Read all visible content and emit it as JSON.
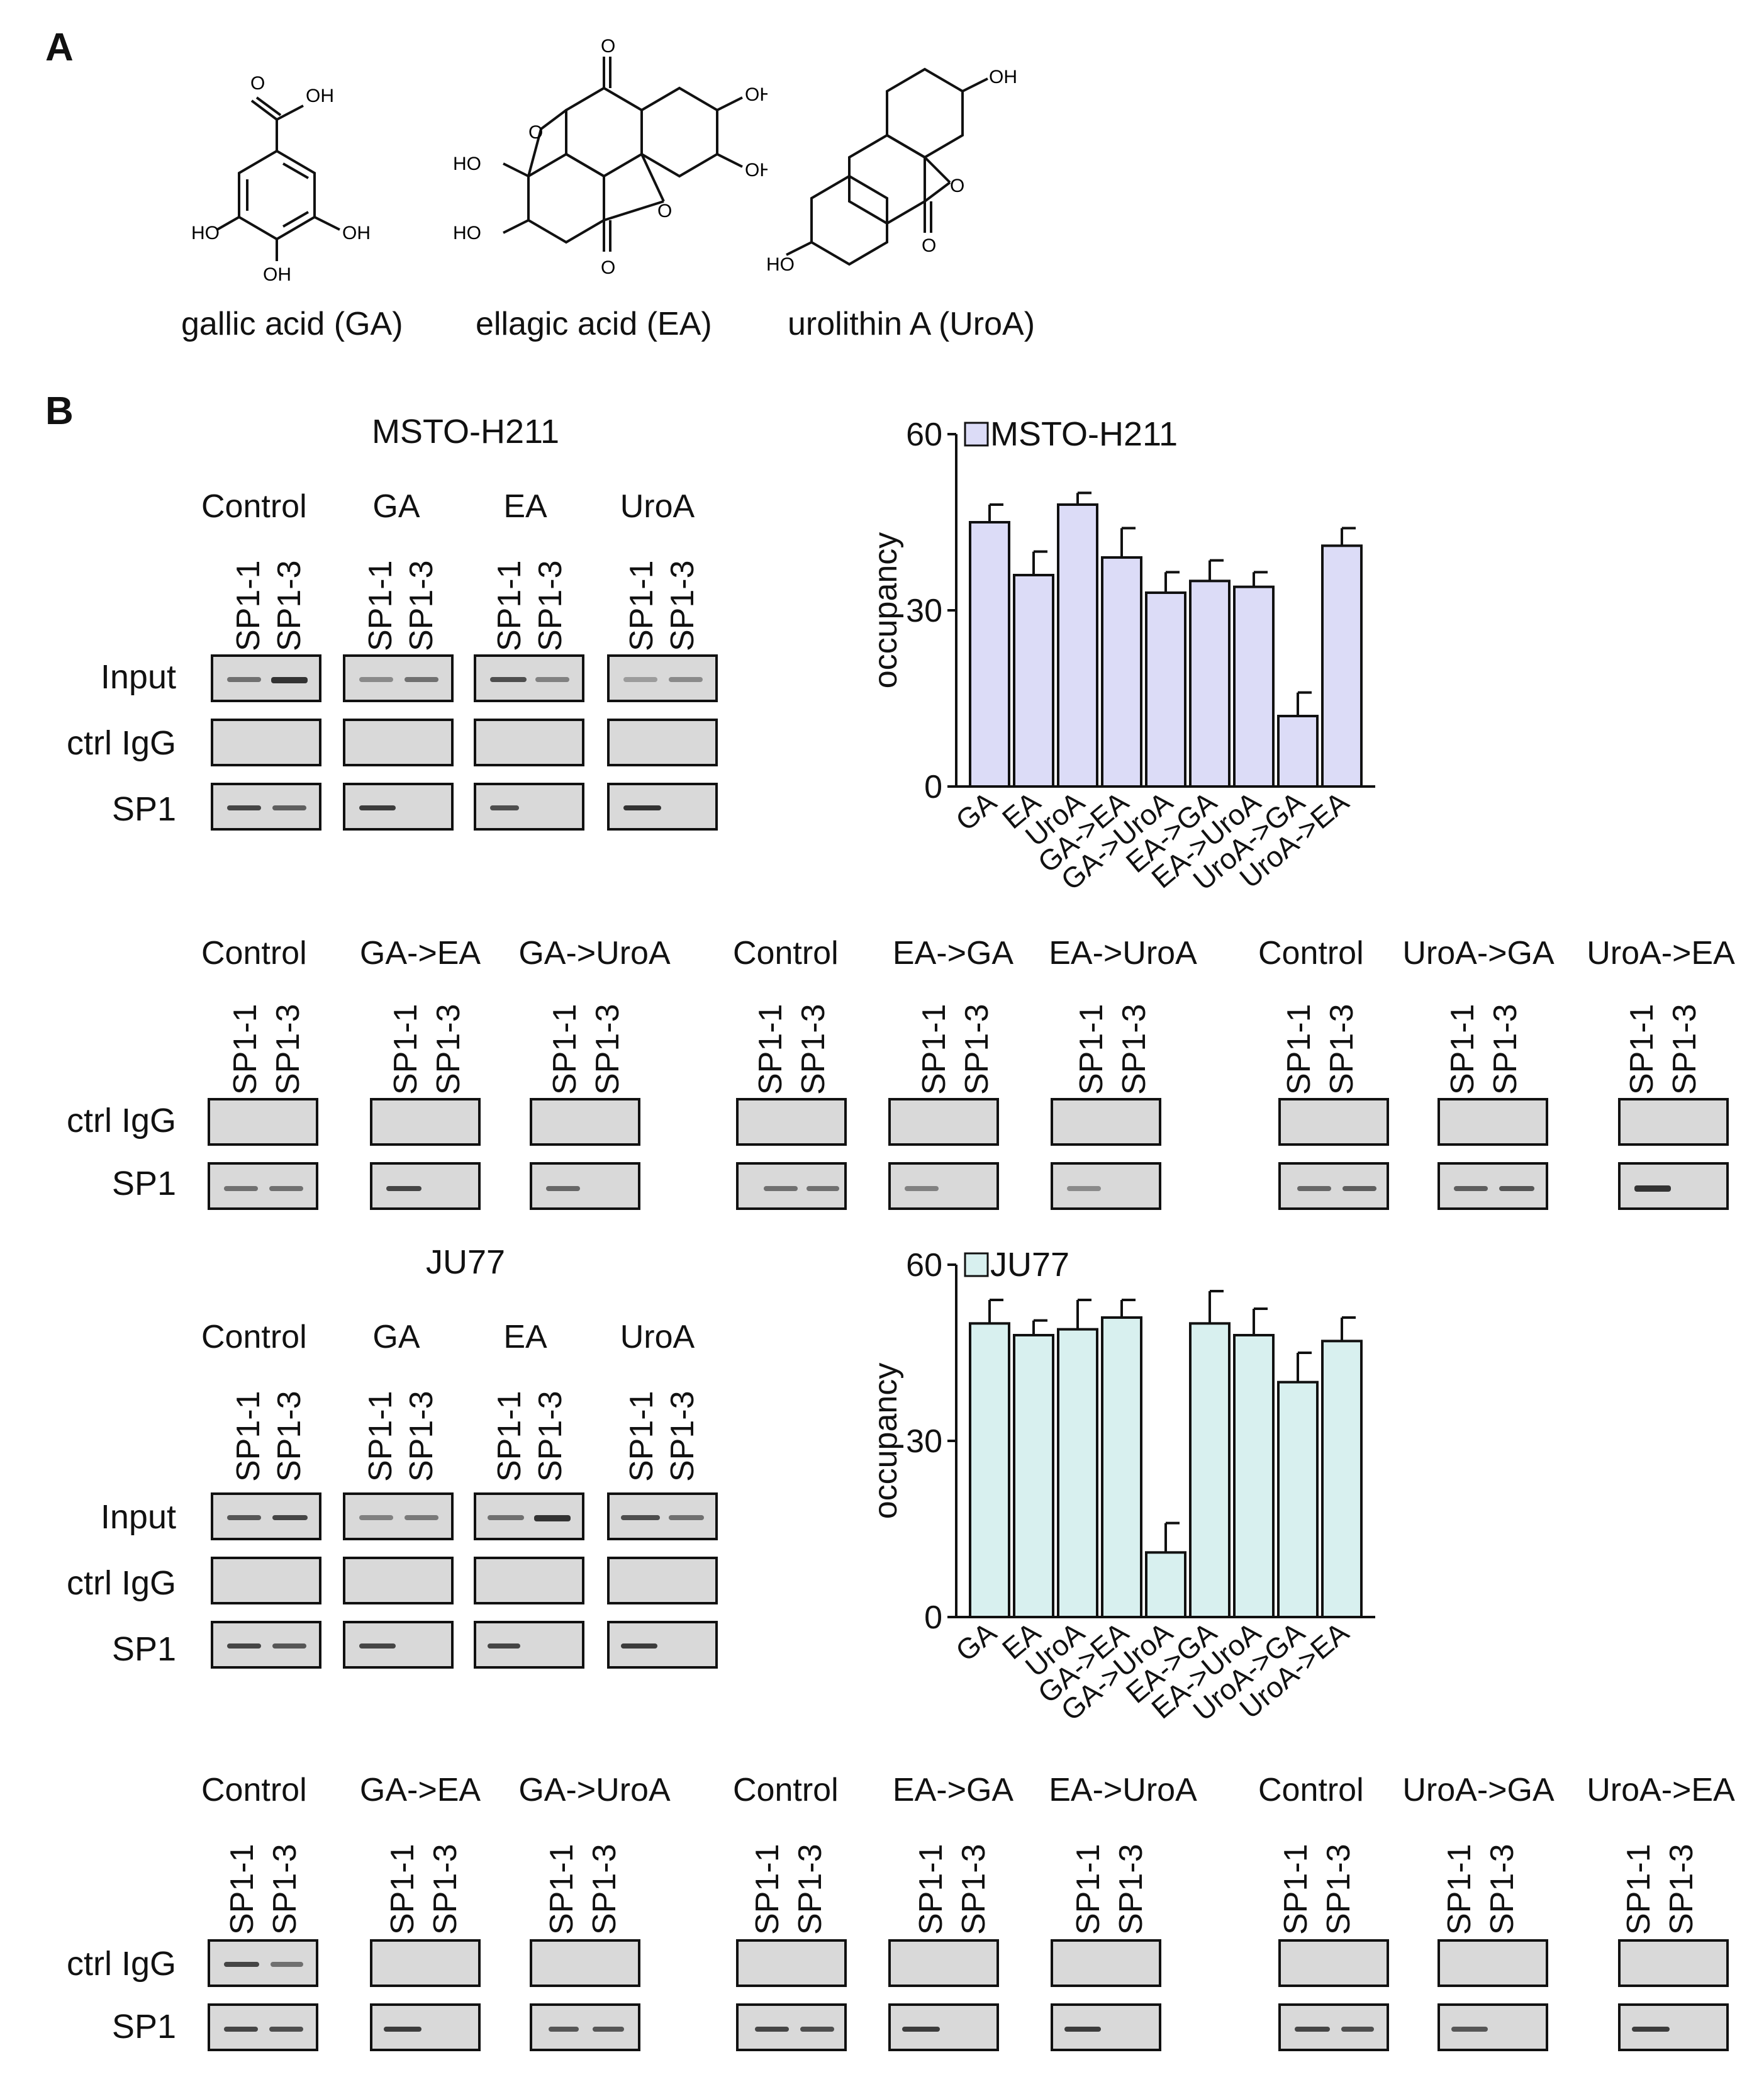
{
  "panelA": {
    "letter": "A",
    "compounds": [
      {
        "name": "gallic acid (GA)",
        "atoms": [
          "O",
          "OH",
          "HO",
          "OH",
          "OH"
        ]
      },
      {
        "name": "ellagic acid (EA)",
        "atoms": [
          "O",
          "O",
          "OH",
          "HO",
          "OH",
          "HO",
          "O",
          "O"
        ]
      },
      {
        "name": "urolithin A (UroA)",
        "atoms": [
          "OH",
          "HO",
          "O",
          "O"
        ]
      }
    ]
  },
  "panelB": {
    "letter": "B",
    "lanes": [
      "SP1-1",
      "SP1-3"
    ],
    "rows": {
      "input": "Input",
      "igg": "ctrl IgG",
      "sp1": "SP1"
    },
    "cells": [
      {
        "name": "MSTO-H211",
        "groups1": [
          "Control",
          "GA",
          "EA",
          "UroA"
        ],
        "groups2": [
          "Control",
          "GA->EA",
          "GA->UroA",
          "Control",
          "EA->GA",
          "EA->UroA",
          "Control",
          "UroA->GA",
          "UroA->EA"
        ]
      },
      {
        "name": "JU77",
        "groups1": [
          "Control",
          "GA",
          "EA",
          "UroA"
        ],
        "groups2": [
          "Control",
          "GA->EA",
          "GA->UroA",
          "Control",
          "EA->GA",
          "EA->UroA",
          "Control",
          "UroA->GA",
          "UroA->EA"
        ]
      }
    ]
  },
  "chart_data": [
    {
      "type": "bar",
      "legend": "MSTO-H211",
      "ylabel": "occupancy",
      "ylim": [
        0,
        60
      ],
      "yticks": [
        0,
        30,
        60
      ],
      "categories": [
        "GA",
        "EA",
        "UroA",
        "GA->EA",
        "GA->UroA",
        "EA->GA",
        "EA->UroA",
        "UroA->GA",
        "UroA->EA"
      ],
      "values": [
        45,
        36,
        48,
        39,
        33,
        35,
        34,
        12,
        41
      ],
      "errors": [
        3,
        4,
        2,
        5,
        3.5,
        3.5,
        2.5,
        4,
        3
      ],
      "color": "#dcdcf7"
    },
    {
      "type": "bar",
      "legend": "JU77",
      "ylabel": "occupancy",
      "ylim": [
        0,
        60
      ],
      "yticks": [
        0,
        30,
        60
      ],
      "categories": [
        "GA",
        "EA",
        "UroA",
        "GA->EA",
        "GA->UroA",
        "EA->GA",
        "EA->UroA",
        "UroA->GA",
        "UroA->EA"
      ],
      "values": [
        50,
        48,
        49,
        51,
        11,
        50,
        48,
        40,
        47
      ],
      "errors": [
        4,
        2.5,
        5,
        3,
        5,
        5.5,
        4.5,
        5,
        4
      ],
      "color": "#d8f0ef"
    }
  ]
}
